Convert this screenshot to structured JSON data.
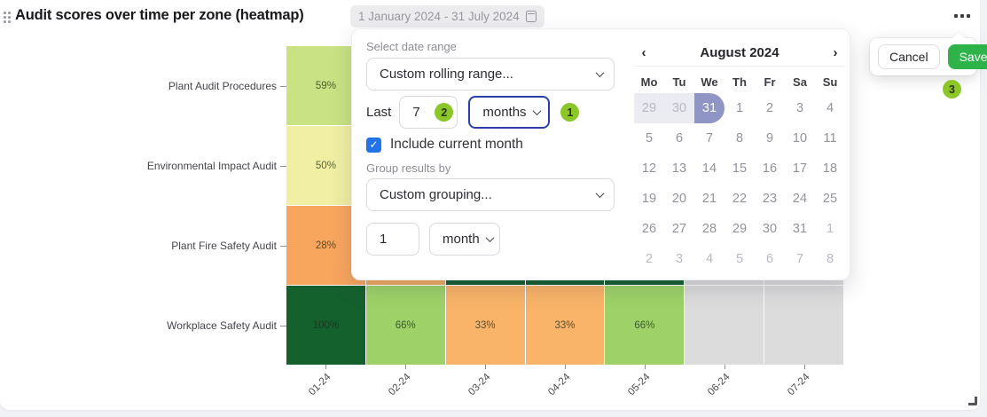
{
  "header": {
    "title": "Audit scores over time per zone (heatmap)",
    "date_range": "1 January 2024 - 31 July 2024"
  },
  "popup": {
    "select_date_range_label": "Select date range",
    "date_range_value": "Custom rolling range...",
    "last_label": "Last",
    "last_value": "7",
    "last_unit_value": "months",
    "include_current_month_label": "Include current month",
    "include_current_month_checked": true,
    "group_results_label": "Group results by",
    "group_value": "Custom grouping...",
    "group_every_value": "1",
    "group_unit_value": "month"
  },
  "step_badges": {
    "unit": "1",
    "count": "2",
    "save": "3"
  },
  "calendar": {
    "month_title": "August 2024",
    "prev_icon": "‹",
    "next_icon": "›",
    "weekdays": [
      "Mo",
      "Tu",
      "We",
      "Th",
      "Fr",
      "Sa",
      "Su"
    ],
    "selected_day": "31",
    "days": [
      {
        "d": "29",
        "muted": true,
        "range": true
      },
      {
        "d": "30",
        "muted": true,
        "range": true
      },
      {
        "d": "31",
        "selected": true
      },
      {
        "d": "1"
      },
      {
        "d": "2"
      },
      {
        "d": "3"
      },
      {
        "d": "4"
      },
      {
        "d": "5"
      },
      {
        "d": "6"
      },
      {
        "d": "7"
      },
      {
        "d": "8"
      },
      {
        "d": "9"
      },
      {
        "d": "10"
      },
      {
        "d": "11"
      },
      {
        "d": "12"
      },
      {
        "d": "13"
      },
      {
        "d": "14"
      },
      {
        "d": "15"
      },
      {
        "d": "16"
      },
      {
        "d": "17"
      },
      {
        "d": "18"
      },
      {
        "d": "19"
      },
      {
        "d": "20"
      },
      {
        "d": "21"
      },
      {
        "d": "22"
      },
      {
        "d": "23"
      },
      {
        "d": "24"
      },
      {
        "d": "25"
      },
      {
        "d": "26"
      },
      {
        "d": "27"
      },
      {
        "d": "28"
      },
      {
        "d": "29"
      },
      {
        "d": "30"
      },
      {
        "d": "31"
      },
      {
        "d": "1",
        "muted": true
      },
      {
        "d": "2",
        "muted": true
      },
      {
        "d": "3",
        "muted": true
      },
      {
        "d": "4",
        "muted": true
      },
      {
        "d": "5",
        "muted": true
      },
      {
        "d": "6",
        "muted": true
      },
      {
        "d": "7",
        "muted": true
      },
      {
        "d": "8",
        "muted": true
      }
    ]
  },
  "popover": {
    "cancel_label": "Cancel",
    "save_label": "Save"
  },
  "icons": {
    "check": "✓"
  },
  "colors": {
    "save_green": "#2eb34b",
    "step_badge_green": "#8cc729",
    "focused_select_blue": "#2b3fa8",
    "checkbox_blue": "#2273e8",
    "selected_day_blue": "#8f96c6",
    "range_bg": "#ebecf2",
    "empty_cell_grey": "#dcdcdc"
  },
  "chart_data": {
    "type": "heatmap",
    "title": "Audit scores over time per zone (heatmap)",
    "x_labels": [
      "01-24",
      "02-24",
      "03-24",
      "04-24",
      "05-24",
      "06-24",
      "07-24"
    ],
    "row_labels": [
      "Plant Audit Procedures",
      "Environmental Impact Audit",
      "Plant Fire Safety Audit",
      "Workplace Safety Audit"
    ],
    "values": [
      [
        59,
        null,
        null,
        null,
        null,
        null,
        null
      ],
      [
        50,
        null,
        null,
        null,
        null,
        null,
        null
      ],
      [
        28,
        null,
        null,
        null,
        null,
        null,
        null
      ],
      [
        100,
        66,
        33,
        33,
        66,
        null,
        null
      ]
    ],
    "cell_text": [
      [
        "59%",
        "",
        "",
        "",
        "",
        "",
        ""
      ],
      [
        "50%",
        "",
        "",
        "",
        "",
        "",
        ""
      ],
      [
        "28%",
        "",
        "",
        "",
        "",
        "",
        ""
      ],
      [
        "100%",
        "66%",
        "33%",
        "33%",
        "66%",
        "",
        ""
      ]
    ],
    "cell_colors": [
      [
        "#c9e284",
        "#dcdcdc",
        "#dcdcdc",
        "#dcdcdc",
        "#dcdcdc",
        "#dcdcdc",
        "#dcdcdc"
      ],
      [
        "#f0efa3",
        "#dcdcdc",
        "#dcdcdc",
        "#dcdcdc",
        "#dcdcdc",
        "#dcdcdc",
        "#dcdcdc"
      ],
      [
        "#f8a55e",
        "#f2ab61",
        "#166031",
        "#166031",
        "#166031",
        "#dcdcdc",
        "#dcdcdc"
      ],
      [
        "#15612e",
        "#9ed268",
        "#f9b469",
        "#f9b469",
        "#9ed268",
        "#dcdcdc",
        "#dcdcdc"
      ]
    ],
    "legend": "none",
    "x_axis_rotation_deg": -45
  }
}
